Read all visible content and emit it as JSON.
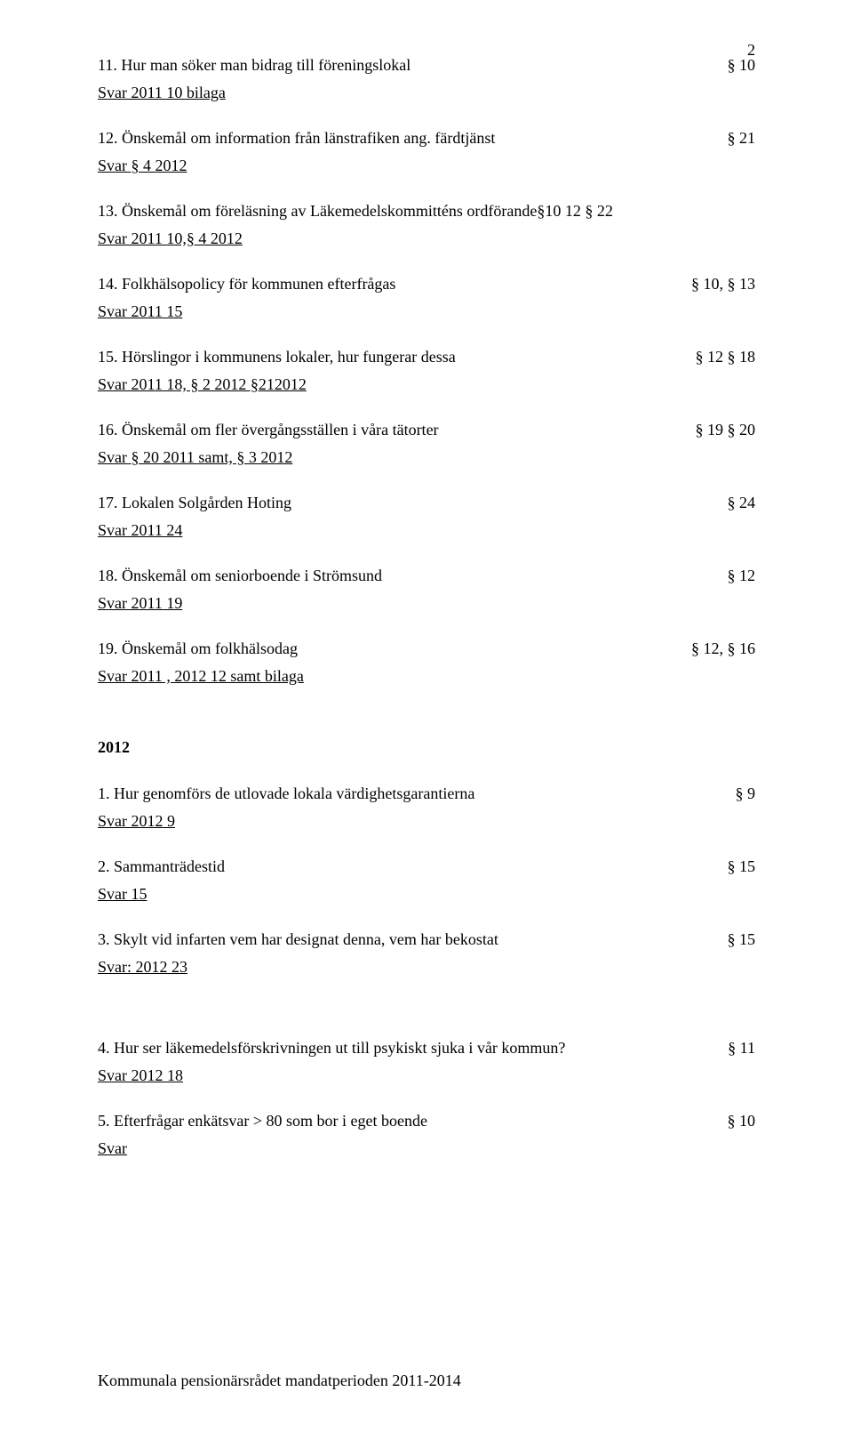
{
  "pageNumber": "2",
  "footer": "Kommunala pensionärsrådet mandatperioden 2011-2014",
  "items11": {
    "title": "11.  Hur man söker man bidrag till föreningslokal",
    "ref": "§ 10",
    "svar": "Svar 2011 10 bilaga"
  },
  "items12": {
    "title": "12.  Önskemål om information från länstrafiken ang. färdtjänst",
    "ref": "§ 21",
    "svar": "Svar § 4 2012"
  },
  "items13": {
    "title": "13.  Önskemål om föreläsning av Läkemedelskommitténs ordförande§10  12  § 22",
    "svar": "Svar 2011 10,§ 4 2012"
  },
  "items14": {
    "title": "14.  Folkhälsopolicy för kommunen efterfrågas",
    "ref": "§ 10, § 13",
    "svar": "Svar 2011 15"
  },
  "items15": {
    "title": "15.  Hörslingor i kommunens lokaler, hur fungerar dessa",
    "ref": "§ 12 § 18",
    "svar": "Svar 2011 18, § 2 2012 §212012"
  },
  "items16": {
    "title": "16.  Önskemål om fler övergångsställen i våra tätorter",
    "ref": "§ 19  § 20",
    "svar": "Svar § 20 2011 samt, § 3 2012"
  },
  "items17": {
    "title": "17. Lokalen Solgården Hoting",
    "ref": "§  24",
    "svar": "Svar 2011 24"
  },
  "items18": {
    "title": "18. Önskemål om seniorboende i Strömsund",
    "ref": "§  12",
    "svar": "Svar 2011 19"
  },
  "items19": {
    "title": "19. Önskemål om folkhälsodag",
    "ref": "§ 12, § 16",
    "svar": "Svar 2011 , 2012 12 samt bilaga"
  },
  "year2012": "2012",
  "b1": {
    "title": "1.   Hur genomförs de utlovade lokala värdighetsgarantierna",
    "ref": "§ 9",
    "svar": "Svar 2012 9"
  },
  "b2": {
    "title": " 2. Sammanträdestid",
    "ref": "§ 15",
    "svar": "Svar 15"
  },
  "b3": {
    "title": " 3.  Skylt vid infarten vem har designat denna, vem har bekostat",
    "ref": "§ 15",
    "svar": "Svar: 2012 23"
  },
  "b4": {
    "title": " 4.  Hur ser läkemedelsförskrivningen ut till psykiskt sjuka i vår kommun?",
    "ref": "§ 11",
    "svar": "Svar 2012 18"
  },
  "b5": {
    "title": " 5.  Efterfrågar enkätsvar > 80 som bor i eget boende",
    "ref": "§ 10",
    "svar": "Svar"
  }
}
